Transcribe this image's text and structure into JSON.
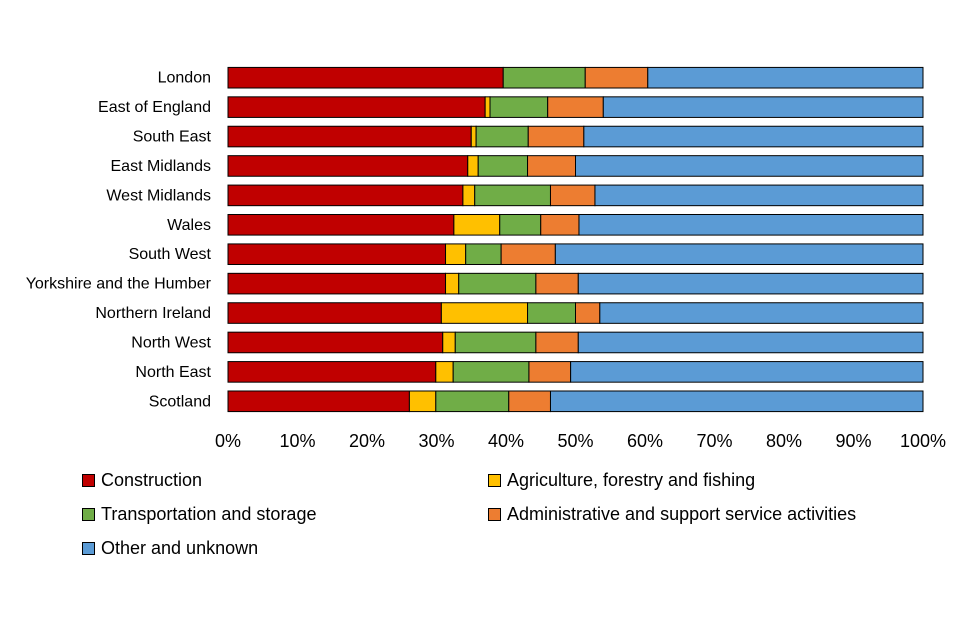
{
  "colors": {
    "construction": "#C00000",
    "agriculture": "#FFC000",
    "transport": "#70AD47",
    "admin": "#ED7D31",
    "other": "#5B9BD5"
  },
  "chart_data": {
    "type": "bar",
    "orientation": "horizontal",
    "stacked": "percent",
    "title": "",
    "xlabel": "",
    "ylabel": "",
    "xlim": [
      0,
      100
    ],
    "x_ticks": [
      "0%",
      "10%",
      "20%",
      "30%",
      "40%",
      "50%",
      "60%",
      "70%",
      "80%",
      "90%",
      "100%"
    ],
    "grid": false,
    "legend_position": "bottom",
    "categories": [
      "London",
      "East of England",
      "South East",
      "East Midlands",
      "West Midlands",
      "Wales",
      "South West",
      "Yorkshire and the Humber",
      "Northern Ireland",
      "North West",
      "North East",
      "Scotland"
    ],
    "series": [
      {
        "name": "Construction",
        "color": "#C00000",
        "values": [
          39.6,
          37.0,
          35.0,
          34.5,
          33.8,
          32.5,
          31.3,
          31.3,
          30.7,
          30.9,
          29.9,
          26.1
        ]
      },
      {
        "name": "Agriculture, forestry and fishing",
        "color": "#FFC000",
        "values": [
          0.0,
          0.7,
          0.7,
          1.5,
          1.7,
          6.6,
          2.9,
          1.9,
          12.4,
          1.8,
          2.5,
          3.8
        ]
      },
      {
        "name": "Transportation and storage",
        "color": "#70AD47",
        "values": [
          11.8,
          8.3,
          7.5,
          7.1,
          10.9,
          5.9,
          5.1,
          11.1,
          6.9,
          11.6,
          10.9,
          10.5
        ]
      },
      {
        "name": "Administrative and support service activities",
        "color": "#ED7D31",
        "values": [
          9.0,
          8.0,
          8.0,
          6.9,
          6.4,
          5.5,
          7.8,
          6.1,
          3.5,
          6.1,
          6.0,
          6.0
        ]
      },
      {
        "name": "Other and unknown",
        "color": "#5B9BD5",
        "values": [
          39.6,
          46.0,
          48.8,
          50.0,
          47.2,
          49.5,
          52.9,
          49.6,
          46.5,
          49.6,
          50.7,
          53.6
        ]
      }
    ]
  }
}
